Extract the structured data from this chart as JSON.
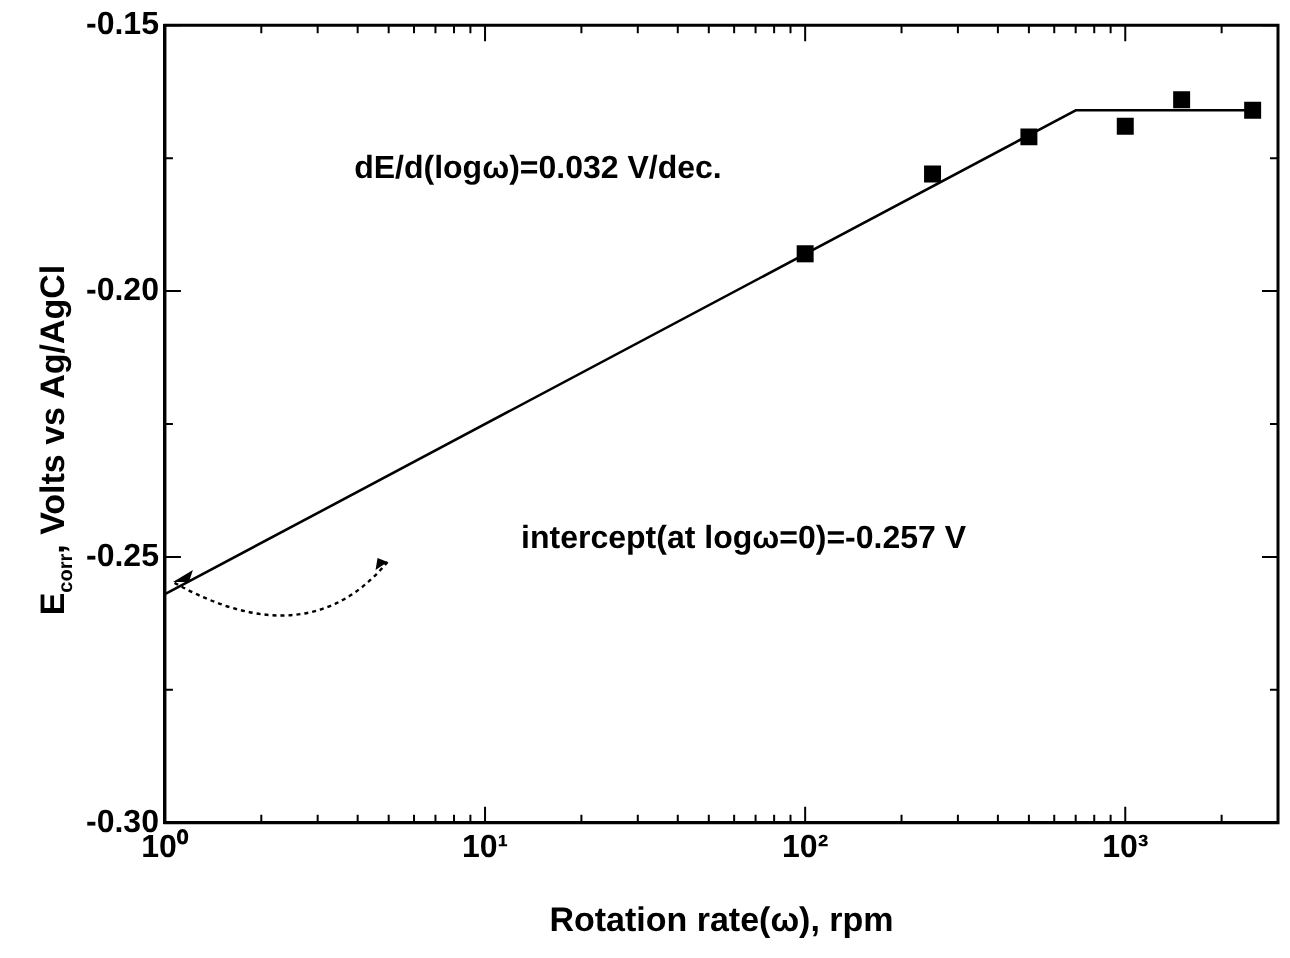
{
  "chart_data": {
    "type": "scatter",
    "xlabel": "Rotation rate(ω), rpm",
    "ylabel": "E$_{corr}$, Volts vs Ag/AgCl",
    "log": "x",
    "grid": false,
    "legend": false,
    "marker": "square",
    "xlim": [
      1,
      3000
    ],
    "ylim": [
      -0.3,
      -0.15
    ],
    "xticks": [
      {
        "value": 1,
        "label": "10⁰"
      },
      {
        "value": 2,
        "label": null
      },
      {
        "value": 3,
        "label": null
      },
      {
        "value": 4,
        "label": null
      },
      {
        "value": 5,
        "label": null
      },
      {
        "value": 6,
        "label": null
      },
      {
        "value": 7,
        "label": null
      },
      {
        "value": 8,
        "label": null
      },
      {
        "value": 9,
        "label": null
      },
      {
        "value": 10,
        "label": "10¹"
      },
      {
        "value": 20,
        "label": null
      },
      {
        "value": 30,
        "label": null
      },
      {
        "value": 40,
        "label": null
      },
      {
        "value": 50,
        "label": null
      },
      {
        "value": 60,
        "label": null
      },
      {
        "value": 70,
        "label": null
      },
      {
        "value": 80,
        "label": null
      },
      {
        "value": 90,
        "label": null
      },
      {
        "value": 100,
        "label": "10²"
      },
      {
        "value": 200,
        "label": null
      },
      {
        "value": 300,
        "label": null
      },
      {
        "value": 400,
        "label": null
      },
      {
        "value": 500,
        "label": null
      },
      {
        "value": 600,
        "label": null
      },
      {
        "value": 700,
        "label": null
      },
      {
        "value": 800,
        "label": null
      },
      {
        "value": 900,
        "label": null
      },
      {
        "value": 1000,
        "label": "10³"
      },
      {
        "value": 2000,
        "label": null
      },
      {
        "value": 3000,
        "label": null
      }
    ],
    "yticks": [
      {
        "value": -0.3,
        "label": "-0.30"
      },
      {
        "value": -0.275,
        "label": null
      },
      {
        "value": -0.25,
        "label": "-0.25"
      },
      {
        "value": -0.225,
        "label": null
      },
      {
        "value": -0.2,
        "label": "-0.20"
      },
      {
        "value": -0.175,
        "label": null
      },
      {
        "value": -0.15,
        "label": "-0.15"
      }
    ],
    "series": [
      {
        "color": "#000000",
        "x": [
          100,
          250,
          500,
          1000,
          1500,
          2500
        ],
        "values": [
          -0.193,
          -0.178,
          -0.171,
          -0.169,
          -0.164,
          -0.166
        ]
      },
      {
        "type": "line",
        "color": "#000000",
        "marker": "none",
        "line_style": "solid",
        "x": [
          1,
          700,
          2500
        ],
        "values": [
          -0.257,
          -0.166,
          -0.166
        ]
      }
    ],
    "annotations": [
      "dE/d(logω)=0.032 V/dec.",
      "intercept(at logω=0)=-0.257 V"
    ]
  }
}
